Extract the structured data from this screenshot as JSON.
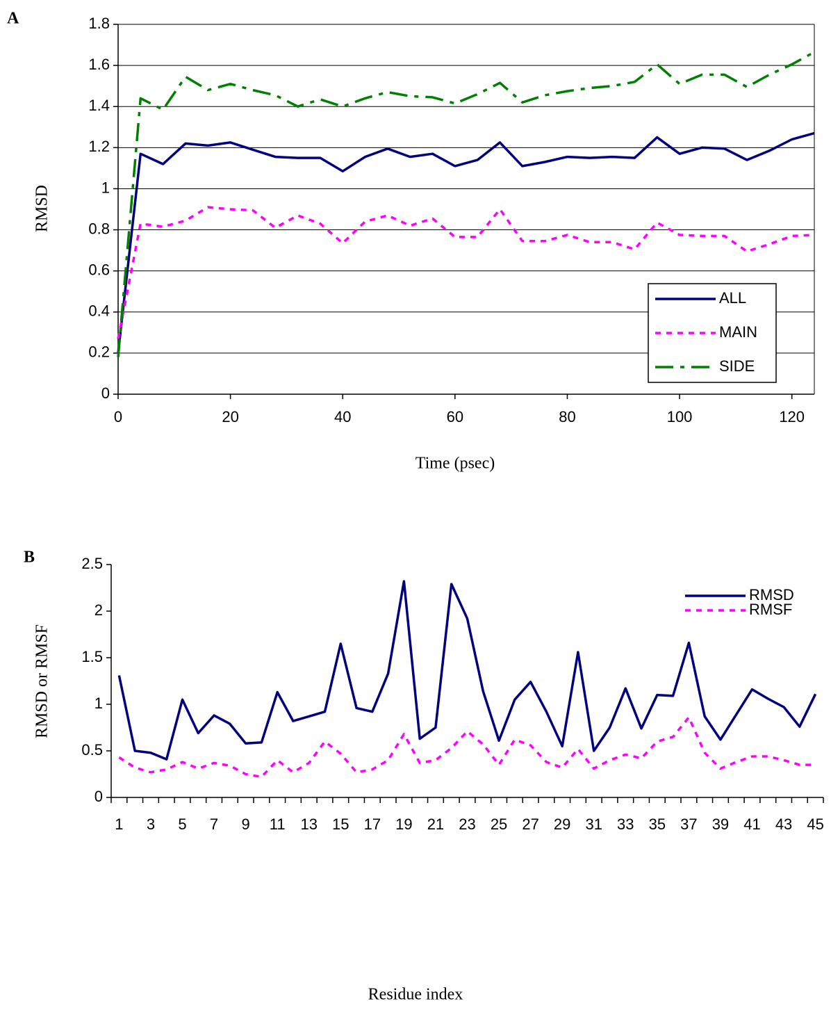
{
  "chart_data": [
    {
      "type": "line",
      "label": "A",
      "ylabel": "RMSD",
      "xlabel": "Time (psec)",
      "x": [
        0,
        4,
        8,
        12,
        16,
        20,
        24,
        28,
        32,
        36,
        40,
        44,
        48,
        52,
        56,
        60,
        64,
        68,
        72,
        76,
        80,
        84,
        88,
        92,
        96,
        100,
        104,
        108,
        112,
        116,
        120,
        124
      ],
      "series": [
        {
          "name": "ALL",
          "color": "#000080",
          "values": [
            0.2,
            1.17,
            1.12,
            1.22,
            1.21,
            1.225,
            1.19,
            1.155,
            1.15,
            1.15,
            1.085,
            1.155,
            1.195,
            1.155,
            1.17,
            1.11,
            1.14,
            1.225,
            1.11,
            1.13,
            1.155,
            1.15,
            1.155,
            1.15,
            1.25,
            1.17,
            1.2,
            1.195,
            1.14,
            1.185,
            1.24,
            1.27
          ]
        },
        {
          "name": "MAIN",
          "color": "#ff00ff",
          "values": [
            0.27,
            0.83,
            0.815,
            0.845,
            0.91,
            0.9,
            0.895,
            0.81,
            0.87,
            0.83,
            0.735,
            0.84,
            0.87,
            0.82,
            0.855,
            0.765,
            0.765,
            0.9,
            0.745,
            0.745,
            0.775,
            0.74,
            0.74,
            0.705,
            0.835,
            0.775,
            0.77,
            0.77,
            0.695,
            0.73,
            0.77,
            0.775
          ]
        },
        {
          "name": "SIDE",
          "color": "#008000",
          "values": [
            0.18,
            1.44,
            1.385,
            1.545,
            1.48,
            1.51,
            1.48,
            1.455,
            1.4,
            1.435,
            1.4,
            1.44,
            1.47,
            1.45,
            1.445,
            1.415,
            1.46,
            1.515,
            1.42,
            1.455,
            1.475,
            1.49,
            1.5,
            1.52,
            1.605,
            1.51,
            1.555,
            1.555,
            1.495,
            1.555,
            1.605,
            1.665
          ]
        }
      ],
      "xlim": [
        0,
        124
      ],
      "xticks": [
        0,
        20,
        40,
        60,
        80,
        100,
        120
      ],
      "ylim": [
        0,
        1.8
      ],
      "yticks": [
        0,
        0.2,
        0.4,
        0.6,
        0.8,
        1,
        1.2,
        1.4,
        1.6,
        1.8
      ],
      "grid": true,
      "legend": "lower right",
      "legend_frame": true
    },
    {
      "type": "line",
      "label": "B",
      "ylabel": "RMSD or RMSF",
      "xlabel": "Residue index",
      "categories": [
        "1",
        null,
        "3",
        null,
        "5",
        null,
        "7",
        null,
        "9",
        null,
        "11",
        null,
        "13",
        null,
        "15",
        null,
        "17",
        null,
        "19",
        null,
        "21",
        null,
        "23",
        null,
        "25",
        null,
        "27",
        null,
        "29",
        null,
        "31",
        null,
        "33",
        null,
        "35",
        null,
        "37",
        null,
        "39",
        null,
        "41",
        null,
        "43",
        null,
        "45"
      ],
      "series": [
        {
          "name": "RMSD",
          "color": "#000080",
          "values": [
            1.31,
            0.5,
            0.48,
            0.41,
            1.05,
            0.69,
            0.88,
            0.79,
            0.58,
            0.59,
            1.13,
            0.82,
            0.87,
            0.92,
            1.65,
            0.96,
            0.92,
            1.33,
            2.32,
            0.63,
            0.75,
            2.29,
            1.92,
            1.14,
            0.61,
            1.05,
            1.24,
            0.92,
            0.55,
            1.56,
            0.5,
            0.75,
            1.17,
            0.74,
            1.1,
            1.09,
            1.66,
            0.87,
            0.62,
            0.89,
            1.16,
            1.06,
            0.97,
            0.76,
            1.11
          ]
        },
        {
          "name": "RMSF",
          "color": "#ff00ff",
          "values": [
            0.43,
            0.32,
            0.27,
            0.3,
            0.38,
            0.31,
            0.37,
            0.34,
            0.25,
            0.22,
            0.4,
            0.27,
            0.37,
            0.6,
            0.47,
            0.27,
            0.3,
            0.4,
            0.68,
            0.37,
            0.4,
            0.53,
            0.71,
            0.57,
            0.35,
            0.62,
            0.56,
            0.38,
            0.32,
            0.52,
            0.31,
            0.4,
            0.46,
            0.42,
            0.6,
            0.65,
            0.86,
            0.48,
            0.31,
            0.38,
            0.44,
            0.44,
            0.4,
            0.35,
            0.35
          ]
        }
      ],
      "ylim": [
        0,
        2.5
      ],
      "yticks": [
        0,
        0.5,
        1,
        1.5,
        2,
        2.5
      ],
      "grid": false,
      "legend": "upper right",
      "legend_frame": false
    }
  ]
}
